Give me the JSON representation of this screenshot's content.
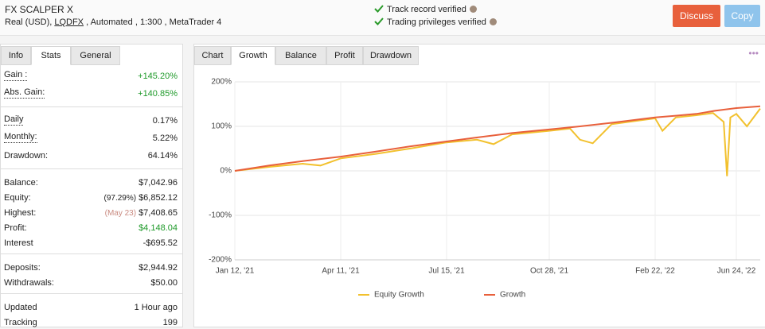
{
  "header": {
    "title": "FX SCALPER X",
    "subtitle_parts": [
      "Real (USD), ",
      "LQDFX",
      " , Automated , 1:300 , MetaTrader 4"
    ],
    "verified": [
      "Track record verified",
      "Trading privileges verified"
    ],
    "buttons": [
      "Discuss",
      "Copy"
    ]
  },
  "left_tabs": {
    "items": [
      "Info",
      "Stats",
      "General"
    ],
    "active": 1
  },
  "stats": [
    [
      {
        "label": "Gain :",
        "value": "+145.20%",
        "color": "#1f9a2a",
        "underline": true
      },
      {
        "label": "Abs. Gain:",
        "value": "+140.85%",
        "color": "#1f9a2a",
        "underline": true
      }
    ],
    [
      {
        "label": "Daily",
        "value": "0.17%",
        "underline": true
      },
      {
        "label": "Monthly:",
        "value": "5.22%",
        "underline": true
      },
      {
        "label": "Drawdown:",
        "value": "64.14%"
      }
    ],
    [
      {
        "label": "Balance:",
        "value": "$7,042.96"
      },
      {
        "label": "Equity:",
        "note": "(97.29%)",
        "value": "$6,852.12"
      },
      {
        "label": "Highest:",
        "note": "(May 23)",
        "value": "$7,408.65",
        "note_color": "#c98a80"
      },
      {
        "label": "Profit:",
        "value": "$4,148.04",
        "color": "#1f9a2a"
      },
      {
        "label": "Interest",
        "value": "-$695.52"
      }
    ],
    [
      {
        "label": "Deposits:",
        "value": "$2,944.92"
      },
      {
        "label": "Withdrawals:",
        "value": "$50.00"
      }
    ],
    [
      {
        "label": "Updated",
        "value": "1 Hour ago"
      },
      {
        "label": "Tracking",
        "value": "199"
      }
    ]
  ],
  "chart_tabs": {
    "items": [
      "Chart",
      "Growth",
      "Balance",
      "Profit",
      "Drawdown"
    ],
    "active": 1,
    "menu": "•••"
  },
  "chart_data": {
    "type": "line",
    "xlim": [
      "2021-01-12",
      "2022-07-30"
    ],
    "xticks": [
      {
        "value": "2021-01-12",
        "label": "Jan 12, '21"
      },
      {
        "value": "2021-04-11",
        "label": "Apr 11, '21"
      },
      {
        "value": "2021-07-15",
        "label": "Jul 15, '21"
      },
      {
        "value": "2021-10-28",
        "label": "Oct 28, '21"
      },
      {
        "value": "2022-02-22",
        "label": "Feb 22, '22"
      },
      {
        "value": "2022-06-24",
        "label": "Jun 24, '22"
      }
    ],
    "ylim": [
      -200,
      200
    ],
    "yticks": [
      {
        "value": -200,
        "label": "-200%"
      },
      {
        "value": -100,
        "label": "-100%"
      },
      {
        "value": 0,
        "label": "0%"
      },
      {
        "value": 100,
        "label": "100%"
      },
      {
        "value": 200,
        "label": "200%"
      }
    ],
    "grid": true,
    "series": [
      {
        "name": "Equity Growth",
        "color": "#f2c12e",
        "x": [
          "2021-01-12",
          "2021-02-10",
          "2021-03-10",
          "2021-03-25",
          "2021-04-11",
          "2021-05-12",
          "2021-06-12",
          "2021-07-15",
          "2021-08-15",
          "2021-09-01",
          "2021-09-20",
          "2021-10-28",
          "2021-11-20",
          "2021-12-01",
          "2021-12-15",
          "2022-01-05",
          "2022-02-22",
          "2022-03-05",
          "2022-03-25",
          "2022-04-25",
          "2022-05-20",
          "2022-06-05",
          "2022-06-10",
          "2022-06-15",
          "2022-06-24",
          "2022-07-10",
          "2022-07-30"
        ],
        "values": [
          0,
          9,
          16,
          12,
          28,
          38,
          50,
          64,
          70,
          60,
          82,
          90,
          95,
          70,
          62,
          105,
          118,
          90,
          120,
          125,
          130,
          110,
          -12,
          120,
          128,
          100,
          140
        ]
      },
      {
        "name": "Growth",
        "color": "#e8603c",
        "x": [
          "2021-01-12",
          "2021-02-10",
          "2021-03-10",
          "2021-04-11",
          "2021-05-12",
          "2021-06-12",
          "2021-07-15",
          "2021-08-15",
          "2021-09-20",
          "2021-10-28",
          "2021-12-01",
          "2022-01-05",
          "2022-02-22",
          "2022-03-25",
          "2022-04-25",
          "2022-05-23",
          "2022-06-24",
          "2022-07-30"
        ],
        "values": [
          0,
          12,
          22,
          32,
          43,
          55,
          66,
          75,
          85,
          93,
          100,
          108,
          120,
          124,
          128,
          135,
          141,
          145
        ]
      }
    ]
  }
}
